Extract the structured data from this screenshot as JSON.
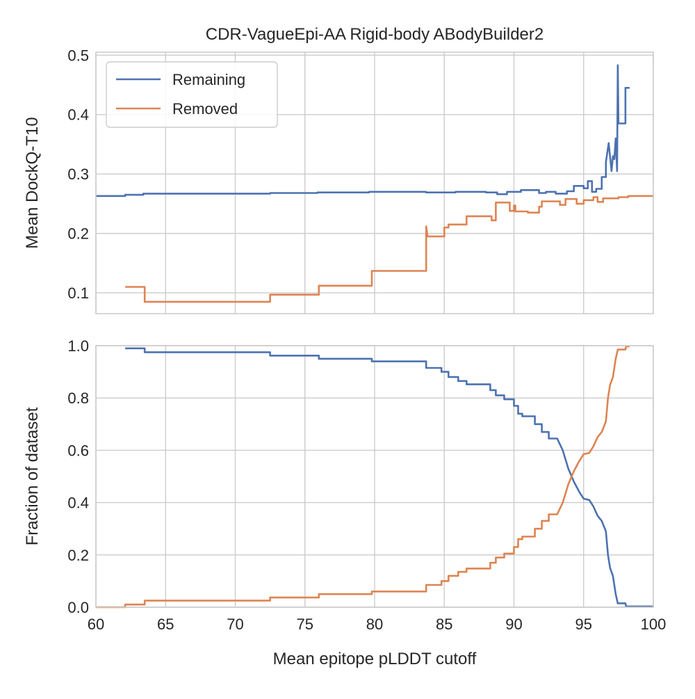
{
  "chart_data": [
    {
      "type": "line",
      "title": "CDR-VagueEpi-AA Rigid-body ABodyBuilder2",
      "xlabel": "",
      "ylabel": "Mean DockQ-T10",
      "xlim": [
        60,
        100
      ],
      "ylim": [
        0.065,
        0.505
      ],
      "xticks": [
        "60",
        "65",
        "70",
        "75",
        "80",
        "85",
        "90",
        "95",
        "100"
      ],
      "yticks": [
        "0.1",
        "0.2",
        "0.3",
        "0.4",
        "0.5"
      ],
      "ytick_values": [
        0.1,
        0.2,
        0.3,
        0.4,
        0.5
      ],
      "grid": true,
      "legend": "top-left",
      "series": [
        {
          "name": "Remaining",
          "color": "#4c72b0",
          "points": [
            [
              60,
              0.263
            ],
            [
              62.1,
              0.263
            ],
            [
              62.1,
              0.265
            ],
            [
              63.4,
              0.265
            ],
            [
              63.4,
              0.267
            ],
            [
              72.5,
              0.267
            ],
            [
              72.5,
              0.268
            ],
            [
              75.9,
              0.268
            ],
            [
              75.9,
              0.269
            ],
            [
              79.6,
              0.269
            ],
            [
              79.6,
              0.27
            ],
            [
              83.7,
              0.27
            ],
            [
              83.7,
              0.269
            ],
            [
              85.8,
              0.269
            ],
            [
              85.8,
              0.27
            ],
            [
              88,
              0.27
            ],
            [
              88,
              0.269
            ],
            [
              88.8,
              0.269
            ],
            [
              88.8,
              0.266
            ],
            [
              89.5,
              0.266
            ],
            [
              89.5,
              0.27
            ],
            [
              90.5,
              0.27
            ],
            [
              90.5,
              0.273
            ],
            [
              91.8,
              0.273
            ],
            [
              91.8,
              0.268
            ],
            [
              92.3,
              0.268
            ],
            [
              92.3,
              0.27
            ],
            [
              93,
              0.27
            ],
            [
              93,
              0.267
            ],
            [
              93.8,
              0.267
            ],
            [
              93.8,
              0.271
            ],
            [
              94.3,
              0.271
            ],
            [
              94.3,
              0.28
            ],
            [
              95,
              0.28
            ],
            [
              95,
              0.276
            ],
            [
              95.3,
              0.276
            ],
            [
              95.3,
              0.288
            ],
            [
              95.6,
              0.288
            ],
            [
              95.6,
              0.27
            ],
            [
              95.9,
              0.27
            ],
            [
              95.9,
              0.275
            ],
            [
              96.3,
              0.275
            ],
            [
              96.3,
              0.295
            ],
            [
              96.6,
              0.295
            ],
            [
              96.6,
              0.32
            ],
            [
              96.8,
              0.352
            ],
            [
              97,
              0.305
            ],
            [
              97.1,
              0.33
            ],
            [
              97.2,
              0.325
            ],
            [
              97.3,
              0.36
            ],
            [
              97.4,
              0.305
            ],
            [
              97.45,
              0.483
            ],
            [
              97.5,
              0.385
            ],
            [
              98,
              0.385
            ],
            [
              98,
              0.445
            ],
            [
              98.3,
              0.445
            ]
          ]
        },
        {
          "name": "Removed",
          "color": "#dd8452",
          "points": [
            [
              62.1,
              0.11
            ],
            [
              63.5,
              0.11
            ],
            [
              63.5,
              0.085
            ],
            [
              72.5,
              0.085
            ],
            [
              72.5,
              0.097
            ],
            [
              76,
              0.097
            ],
            [
              76,
              0.112
            ],
            [
              79.8,
              0.112
            ],
            [
              79.8,
              0.137
            ],
            [
              83.7,
              0.137
            ],
            [
              83.7,
              0.212
            ],
            [
              83.8,
              0.195
            ],
            [
              85,
              0.195
            ],
            [
              85,
              0.21
            ],
            [
              85.3,
              0.21
            ],
            [
              85.3,
              0.215
            ],
            [
              86.6,
              0.215
            ],
            [
              86.6,
              0.229
            ],
            [
              88.4,
              0.229
            ],
            [
              88.4,
              0.222
            ],
            [
              88.7,
              0.222
            ],
            [
              88.7,
              0.252
            ],
            [
              89.7,
              0.252
            ],
            [
              89.7,
              0.238
            ],
            [
              90,
              0.238
            ],
            [
              90,
              0.247
            ],
            [
              90.1,
              0.247
            ],
            [
              90.1,
              0.237
            ],
            [
              91,
              0.237
            ],
            [
              91,
              0.235
            ],
            [
              91.8,
              0.235
            ],
            [
              91.8,
              0.245
            ],
            [
              92,
              0.245
            ],
            [
              92,
              0.254
            ],
            [
              93.3,
              0.254
            ],
            [
              93.3,
              0.248
            ],
            [
              93.7,
              0.248
            ],
            [
              93.7,
              0.258
            ],
            [
              94.5,
              0.258
            ],
            [
              94.5,
              0.25
            ],
            [
              95,
              0.25
            ],
            [
              95,
              0.256
            ],
            [
              95.7,
              0.256
            ],
            [
              95.7,
              0.261
            ],
            [
              96,
              0.261
            ],
            [
              96,
              0.253
            ],
            [
              96.4,
              0.253
            ],
            [
              96.4,
              0.259
            ],
            [
              97.5,
              0.259
            ],
            [
              97.5,
              0.261
            ],
            [
              98.2,
              0.261
            ],
            [
              98.2,
              0.263
            ],
            [
              100,
              0.263
            ]
          ]
        }
      ]
    },
    {
      "type": "line",
      "title": "",
      "xlabel": "Mean epitope pLDDT cutoff",
      "ylabel": "Fraction of dataset",
      "xlim": [
        60,
        100
      ],
      "ylim": [
        0,
        1
      ],
      "xticks": [
        "60",
        "65",
        "70",
        "75",
        "80",
        "85",
        "90",
        "95",
        "100"
      ],
      "yticks": [
        "0.0",
        "0.2",
        "0.4",
        "0.6",
        "0.8",
        "1.0"
      ],
      "ytick_values": [
        0,
        0.2,
        0.4,
        0.6,
        0.8,
        1.0
      ],
      "grid": true,
      "series": [
        {
          "name": "Remaining",
          "color": "#4c72b0",
          "points": [
            [
              62.1,
              0.99
            ],
            [
              63.5,
              0.99
            ],
            [
              63.5,
              0.975
            ],
            [
              72.5,
              0.975
            ],
            [
              72.5,
              0.962
            ],
            [
              76,
              0.962
            ],
            [
              76,
              0.95
            ],
            [
              79.8,
              0.95
            ],
            [
              79.8,
              0.94
            ],
            [
              83.7,
              0.94
            ],
            [
              83.7,
              0.915
            ],
            [
              84.8,
              0.915
            ],
            [
              84.8,
              0.9
            ],
            [
              85.3,
              0.9
            ],
            [
              85.3,
              0.88
            ],
            [
              86,
              0.88
            ],
            [
              86,
              0.865
            ],
            [
              86.6,
              0.865
            ],
            [
              86.6,
              0.852
            ],
            [
              88.3,
              0.852
            ],
            [
              88.3,
              0.83
            ],
            [
              88.7,
              0.83
            ],
            [
              88.7,
              0.81
            ],
            [
              89.3,
              0.81
            ],
            [
              89.3,
              0.795
            ],
            [
              90,
              0.795
            ],
            [
              90,
              0.77
            ],
            [
              90.3,
              0.77
            ],
            [
              90.3,
              0.74
            ],
            [
              90.6,
              0.74
            ],
            [
              90.6,
              0.73
            ],
            [
              91.5,
              0.73
            ],
            [
              91.5,
              0.7
            ],
            [
              92,
              0.7
            ],
            [
              92,
              0.67
            ],
            [
              92.5,
              0.67
            ],
            [
              92.5,
              0.645
            ],
            [
              93.1,
              0.645
            ],
            [
              93.5,
              0.6
            ],
            [
              93.9,
              0.53
            ],
            [
              94.3,
              0.48
            ],
            [
              94.7,
              0.44
            ],
            [
              95,
              0.415
            ],
            [
              95.4,
              0.41
            ],
            [
              95.7,
              0.385
            ],
            [
              96,
              0.35
            ],
            [
              96.3,
              0.33
            ],
            [
              96.6,
              0.29
            ],
            [
              96.75,
              0.2
            ],
            [
              96.9,
              0.15
            ],
            [
              97.1,
              0.12
            ],
            [
              97.3,
              0.05
            ],
            [
              97.45,
              0.015
            ],
            [
              98,
              0.015
            ],
            [
              98.05,
              0.003
            ],
            [
              100,
              0.003
            ]
          ]
        },
        {
          "name": "Removed",
          "color": "#dd8452",
          "points": [
            [
              60,
              0
            ],
            [
              62.1,
              0
            ],
            [
              62.1,
              0.01
            ],
            [
              63.5,
              0.01
            ],
            [
              63.5,
              0.025
            ],
            [
              72.5,
              0.025
            ],
            [
              72.5,
              0.037
            ],
            [
              76,
              0.037
            ],
            [
              76,
              0.05
            ],
            [
              79.8,
              0.05
            ],
            [
              79.8,
              0.06
            ],
            [
              83.7,
              0.06
            ],
            [
              83.7,
              0.085
            ],
            [
              84.8,
              0.085
            ],
            [
              84.8,
              0.1
            ],
            [
              85.3,
              0.1
            ],
            [
              85.3,
              0.12
            ],
            [
              86,
              0.12
            ],
            [
              86,
              0.135
            ],
            [
              86.6,
              0.135
            ],
            [
              86.6,
              0.148
            ],
            [
              88.3,
              0.148
            ],
            [
              88.3,
              0.17
            ],
            [
              88.7,
              0.17
            ],
            [
              88.7,
              0.19
            ],
            [
              89.3,
              0.19
            ],
            [
              89.3,
              0.205
            ],
            [
              90,
              0.205
            ],
            [
              90,
              0.23
            ],
            [
              90.3,
              0.23
            ],
            [
              90.3,
              0.26
            ],
            [
              90.6,
              0.26
            ],
            [
              90.6,
              0.27
            ],
            [
              91.5,
              0.27
            ],
            [
              91.5,
              0.3
            ],
            [
              92,
              0.3
            ],
            [
              92,
              0.33
            ],
            [
              92.5,
              0.33
            ],
            [
              92.5,
              0.355
            ],
            [
              93.1,
              0.355
            ],
            [
              93.5,
              0.4
            ],
            [
              93.9,
              0.47
            ],
            [
              94.3,
              0.52
            ],
            [
              94.7,
              0.56
            ],
            [
              95,
              0.585
            ],
            [
              95.4,
              0.59
            ],
            [
              95.7,
              0.615
            ],
            [
              96,
              0.65
            ],
            [
              96.3,
              0.67
            ],
            [
              96.6,
              0.71
            ],
            [
              96.75,
              0.8
            ],
            [
              96.9,
              0.85
            ],
            [
              97.1,
              0.88
            ],
            [
              97.3,
              0.95
            ],
            [
              97.45,
              0.985
            ],
            [
              98,
              0.985
            ],
            [
              98.05,
              0.997
            ],
            [
              98.3,
              0.997
            ]
          ]
        }
      ]
    }
  ]
}
